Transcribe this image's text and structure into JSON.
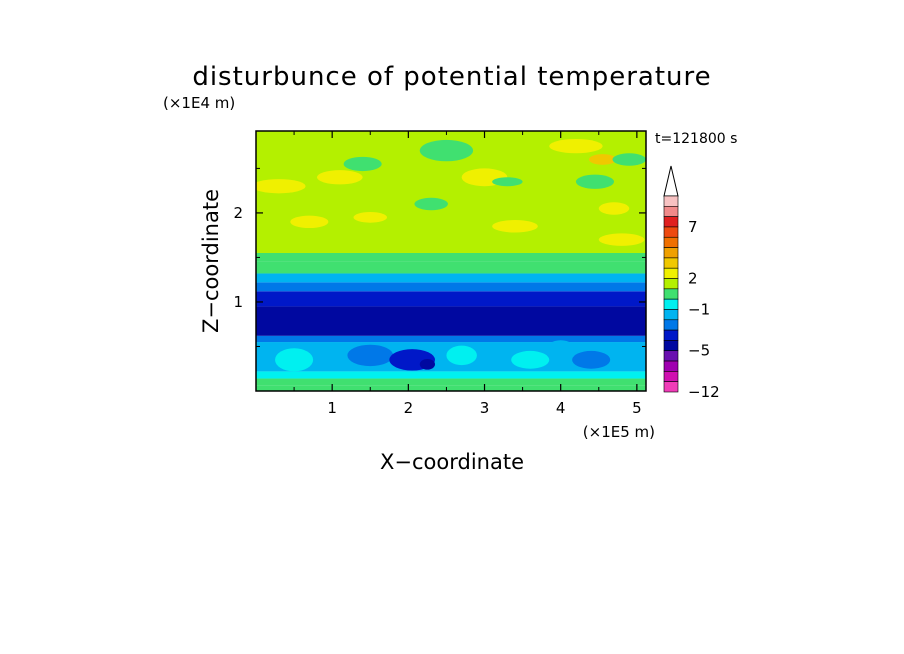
{
  "chart_data": {
    "type": "heatmap",
    "title": "disturbunce of potential temperature",
    "xlabel": "X−coordinate",
    "ylabel": "Z−coordinate",
    "x_unit": "(×1E5 m)",
    "y_unit": "(×1E4 m)",
    "time_label": "t=121800 s",
    "xlim": [
      0,
      5.12
    ],
    "ylim": [
      0,
      2.92
    ],
    "x_ticks": [
      {
        "v": 1,
        "label": "1"
      },
      {
        "v": 2,
        "label": "2"
      },
      {
        "v": 3,
        "label": "3"
      },
      {
        "v": 4,
        "label": "4"
      },
      {
        "v": 5,
        "label": "5"
      }
    ],
    "y_ticks": [
      {
        "v": 1,
        "label": "1"
      },
      {
        "v": 2,
        "label": "2"
      }
    ],
    "colorbar": {
      "levels_top_to_bottom": [
        9,
        8,
        7,
        6,
        5,
        4,
        3,
        2,
        1,
        0,
        -1,
        -2,
        -3,
        -4,
        -5,
        -6,
        -8,
        -10,
        -12
      ],
      "labels": [
        {
          "v": 7,
          "label": "7"
        },
        {
          "v": 2,
          "label": "2"
        },
        {
          "v": -1,
          "label": "−1"
        },
        {
          "v": -5,
          "label": "−5"
        },
        {
          "v": -12,
          "label": "−12"
        }
      ],
      "colors_top_to_bottom": [
        "#f7c2c2",
        "#f08a8a",
        "#e02020",
        "#ee4a10",
        "#f07000",
        "#f0a000",
        "#f0c800",
        "#f0f000",
        "#b4f000",
        "#40e070",
        "#00f0f0",
        "#00b4f0",
        "#0078e8",
        "#0018c8",
        "#0008a0",
        "#6a10b0",
        "#a000b0",
        "#d010b0",
        "#f03cb8"
      ]
    },
    "bands": [
      {
        "z_from": 0.0,
        "z_to": 0.06,
        "value": 0
      },
      {
        "z_from": 0.06,
        "z_to": 0.14,
        "value": 0.5
      },
      {
        "z_from": 0.14,
        "z_to": 0.22,
        "value": -0.5
      },
      {
        "z_from": 0.22,
        "z_to": 0.55,
        "value": -1.5
      },
      {
        "z_from": 0.55,
        "z_to": 0.62,
        "value": -2.5
      },
      {
        "z_from": 0.62,
        "z_to": 0.95,
        "value": -4.5
      },
      {
        "z_from": 0.95,
        "z_to": 1.12,
        "value": -3.5
      },
      {
        "z_from": 1.12,
        "z_to": 1.22,
        "value": -2.5
      },
      {
        "z_from": 1.22,
        "z_to": 1.32,
        "value": -1.5
      },
      {
        "z_from": 1.32,
        "z_to": 1.45,
        "value": 0
      },
      {
        "z_from": 1.45,
        "z_to": 1.55,
        "value": 0.5
      },
      {
        "z_from": 1.55,
        "z_to": 2.92,
        "value": 1.5
      }
    ],
    "features": [
      {
        "x": 0.3,
        "z": 2.3,
        "rx": 0.35,
        "rz": 0.08,
        "value": 2.5
      },
      {
        "x": 1.1,
        "z": 2.4,
        "rx": 0.3,
        "rz": 0.08,
        "value": 2.5
      },
      {
        "x": 0.7,
        "z": 1.9,
        "rx": 0.25,
        "rz": 0.07,
        "value": 2.5
      },
      {
        "x": 1.4,
        "z": 2.55,
        "rx": 0.25,
        "rz": 0.08,
        "value": 0.5
      },
      {
        "x": 1.5,
        "z": 1.95,
        "rx": 0.22,
        "rz": 0.06,
        "value": 2.5
      },
      {
        "x": 2.5,
        "z": 2.7,
        "rx": 0.35,
        "rz": 0.12,
        "value": 0.5
      },
      {
        "x": 2.3,
        "z": 2.1,
        "rx": 0.22,
        "rz": 0.07,
        "value": 0.5
      },
      {
        "x": 3.0,
        "z": 2.4,
        "rx": 0.3,
        "rz": 0.1,
        "value": 2.5
      },
      {
        "x": 3.3,
        "z": 2.35,
        "rx": 0.2,
        "rz": 0.05,
        "value": 0.5
      },
      {
        "x": 3.4,
        "z": 1.85,
        "rx": 0.3,
        "rz": 0.07,
        "value": 2.5
      },
      {
        "x": 4.2,
        "z": 2.75,
        "rx": 0.35,
        "rz": 0.08,
        "value": 2.5
      },
      {
        "x": 4.45,
        "z": 2.35,
        "rx": 0.25,
        "rz": 0.08,
        "value": 0.5
      },
      {
        "x": 4.7,
        "z": 2.05,
        "rx": 0.2,
        "rz": 0.07,
        "value": 2.5
      },
      {
        "x": 4.55,
        "z": 2.6,
        "rx": 0.18,
        "rz": 0.06,
        "value": 3.5
      },
      {
        "x": 4.8,
        "z": 1.7,
        "rx": 0.3,
        "rz": 0.07,
        "value": 2.5
      },
      {
        "x": 4.9,
        "z": 2.6,
        "rx": 0.22,
        "rz": 0.07,
        "value": 0.5
      },
      {
        "x": 0.5,
        "z": 0.35,
        "rx": 0.25,
        "rz": 0.13,
        "value": -0.5
      },
      {
        "x": 1.5,
        "z": 0.4,
        "rx": 0.3,
        "rz": 0.12,
        "value": -2.5
      },
      {
        "x": 2.05,
        "z": 0.35,
        "rx": 0.3,
        "rz": 0.12,
        "value": -3.5
      },
      {
        "x": 2.25,
        "z": 0.3,
        "rx": 0.1,
        "rz": 0.06,
        "value": -4.5
      },
      {
        "x": 2.7,
        "z": 0.4,
        "rx": 0.2,
        "rz": 0.11,
        "value": -0.5
      },
      {
        "x": 3.6,
        "z": 0.35,
        "rx": 0.25,
        "rz": 0.1,
        "value": -0.5
      },
      {
        "x": 4.4,
        "z": 0.35,
        "rx": 0.25,
        "rz": 0.1,
        "value": -2.5
      },
      {
        "x": 4.0,
        "z": 0.45,
        "rx": 0.2,
        "rz": 0.12,
        "value": -1.5
      }
    ]
  }
}
